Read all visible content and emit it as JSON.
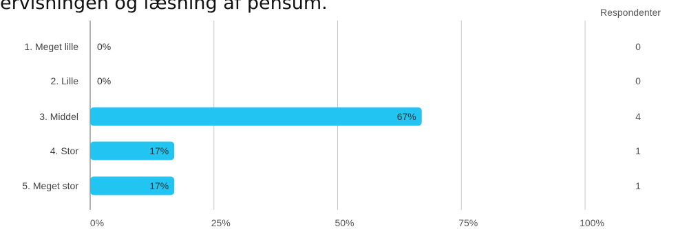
{
  "title": "ervisningen og læsning af pensum.",
  "respondents_header": "Respondenter",
  "colors": {
    "bar": "#22c4f1",
    "grid": "#c8c8c8",
    "axis": "#999999"
  },
  "chart_data": {
    "type": "bar",
    "orientation": "horizontal",
    "title": "ervisningen og læsning af pensum.",
    "categories": [
      "1. Meget lille",
      "2. Lille",
      "3. Middel",
      "4. Stor",
      "5. Meget stor"
    ],
    "values": [
      0,
      0,
      67,
      17,
      17
    ],
    "value_labels": [
      "0%",
      "0%",
      "67%",
      "17%",
      "17%"
    ],
    "respondents": [
      0,
      0,
      4,
      1,
      1
    ],
    "xlim": [
      0,
      100
    ],
    "xticks": [
      0,
      25,
      50,
      75,
      100
    ],
    "xtick_labels": [
      "0%",
      "25%",
      "50%",
      "75%",
      "100%"
    ],
    "grid": true
  }
}
